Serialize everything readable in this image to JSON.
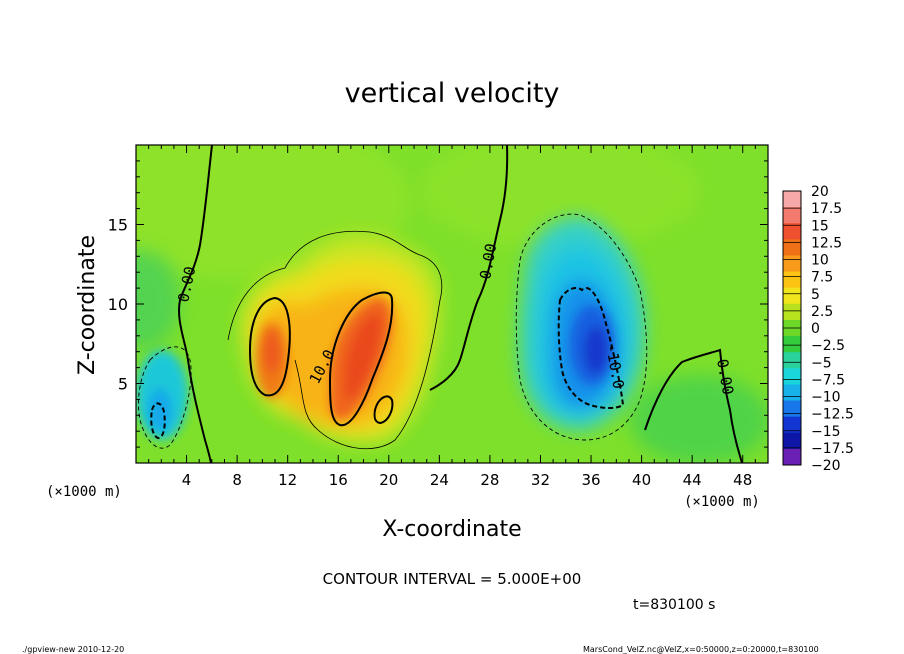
{
  "chart_data": {
    "type": "heatmap",
    "title": "vertical velocity",
    "xlabel": "X-coordinate",
    "ylabel": "Z-coordinate",
    "x_unit": "(×1000 m)",
    "y_unit": "(×1000 m)",
    "xlim": [
      0,
      50
    ],
    "ylim": [
      0,
      20
    ],
    "x_ticks": [
      "4",
      "8",
      "12",
      "16",
      "20",
      "24",
      "28",
      "32",
      "36",
      "40",
      "44",
      "48"
    ],
    "y_ticks": [
      "5",
      "10",
      "15"
    ],
    "colorbar_levels": [
      "20",
      "17.5",
      "15",
      "12.5",
      "10",
      "7.5",
      "5",
      "2.5",
      "0",
      "−2.5",
      "−5",
      "−7.5",
      "−10",
      "−12.5",
      "−15",
      "−17.5",
      "−20"
    ],
    "colorbar_colors": [
      "#f7a8a8",
      "#f27a6e",
      "#ee5030",
      "#f07018",
      "#f89a1a",
      "#fcc412",
      "#f0e41a",
      "#b8e21e",
      "#6ed828",
      "#34cc3c",
      "#28d29a",
      "#1ad6da",
      "#18b2ea",
      "#1878ea",
      "#1236d2",
      "#0e16a6",
      "#6a20b4"
    ],
    "contour_labels": [
      "0.00",
      "0.00",
      "10.0",
      "-10.0",
      "0.00"
    ],
    "contour_interval": "CONTOUR INTERVAL = 5.000E+00",
    "time_label": "t=830100 s",
    "footer_left": "./gpview-new  2010-12-20",
    "footer_right": "MarsCond_VelZ.nc@VelZ,x=0:50000,z=0:20000,t=830100",
    "features": [
      {
        "name": "updraft-left",
        "x": 10.5,
        "z": 7,
        "peak": 10
      },
      {
        "name": "updraft-main",
        "x": 17.5,
        "z": 7,
        "peak": 12.5
      },
      {
        "name": "downdraft-main",
        "x": 35.5,
        "z": 7,
        "peak": -10
      },
      {
        "name": "downdraft-left",
        "x": 2.2,
        "z": 4,
        "peak": -7.5
      }
    ]
  }
}
